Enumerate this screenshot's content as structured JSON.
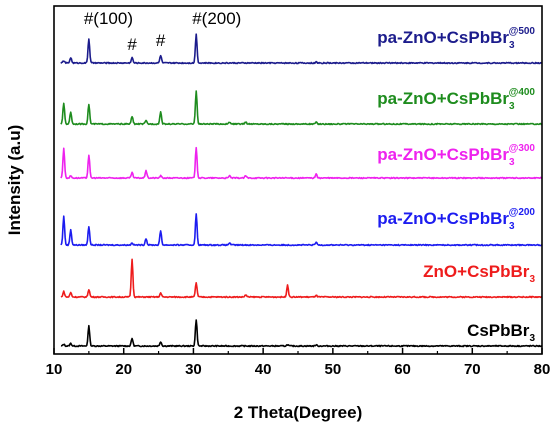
{
  "chart_data": {
    "type": "line",
    "xlabel": "2 Theta(Degree)",
    "ylabel": "Intensity (a.u)",
    "xlim": [
      10,
      80
    ],
    "x_ticks": [
      10,
      20,
      30,
      40,
      50,
      60,
      70,
      80
    ],
    "y_ticks_shown": false,
    "grid": false,
    "legend": "inline labels, right of each trace",
    "annotations": [
      "#(100)",
      "#",
      "#",
      "#(200)"
    ],
    "annotation_x": [
      15,
      21.2,
      25.3,
      30.4
    ],
    "series": [
      {
        "name": "CsPbBr3",
        "label": {
          "main": "CsPbBr",
          "sub": "3",
          "sup": ""
        },
        "color": "#000000",
        "offset": 0,
        "peaks": [
          [
            11.4,
            0.8
          ],
          [
            12.4,
            1.2
          ],
          [
            15.0,
            9.0
          ],
          [
            21.2,
            3.5
          ],
          [
            25.3,
            2.0
          ],
          [
            30.4,
            12.0
          ],
          [
            43.5,
            0.6
          ],
          [
            47.6,
            0.5
          ]
        ]
      },
      {
        "name": "ZnO+CsPbBr3",
        "label": {
          "main": "ZnO+CsPbBr",
          "sub": "3",
          "sup": ""
        },
        "color": "#ee1c1c",
        "offset": 1,
        "peaks": [
          [
            11.4,
            2.5
          ],
          [
            12.4,
            2.0
          ],
          [
            15.0,
            3.5
          ],
          [
            21.2,
            17.0
          ],
          [
            25.3,
            1.8
          ],
          [
            30.4,
            6.5
          ],
          [
            37.5,
            1.0
          ],
          [
            43.5,
            5.5
          ],
          [
            47.6,
            0.8
          ]
        ]
      },
      {
        "name": "pa-ZnO+CsPbBr3@200",
        "label": {
          "main": "pa-ZnO+CsPbBr",
          "sub": "3",
          "sup": "@200"
        },
        "color": "#1c1cf0",
        "offset": 2,
        "peaks": [
          [
            11.4,
            13.0
          ],
          [
            12.4,
            7.0
          ],
          [
            15.0,
            8.5
          ],
          [
            21.2,
            1.0
          ],
          [
            23.2,
            3.0
          ],
          [
            25.3,
            6.5
          ],
          [
            30.4,
            14.0
          ],
          [
            35.2,
            1.0
          ],
          [
            47.6,
            1.2
          ]
        ]
      },
      {
        "name": "pa-ZnO+CsPbBr3@300",
        "label": {
          "main": "pa-ZnO+CsPbBr",
          "sub": "3",
          "sup": "@300"
        },
        "color": "#ee22ee",
        "offset": 3,
        "peaks": [
          [
            11.4,
            13.5
          ],
          [
            12.4,
            1.0
          ],
          [
            15.0,
            10.5
          ],
          [
            21.2,
            2.5
          ],
          [
            23.2,
            3.5
          ],
          [
            25.3,
            1.0
          ],
          [
            30.4,
            14.0
          ],
          [
            35.2,
            1.0
          ],
          [
            37.5,
            1.0
          ],
          [
            47.6,
            1.8
          ]
        ]
      },
      {
        "name": "pa-ZnO+CsPbBr3@400",
        "label": {
          "main": "pa-ZnO+CsPbBr",
          "sub": "3",
          "sup": "@400"
        },
        "color": "#1e8c1e",
        "offset": 4,
        "peaks": [
          [
            11.4,
            9.5
          ],
          [
            12.4,
            5.5
          ],
          [
            15.0,
            9.0
          ],
          [
            21.2,
            3.5
          ],
          [
            23.2,
            1.5
          ],
          [
            25.3,
            5.5
          ],
          [
            30.4,
            15.0
          ],
          [
            35.2,
            0.8
          ],
          [
            37.5,
            1.0
          ],
          [
            47.6,
            0.8
          ]
        ]
      },
      {
        "name": "pa-ZnO+CsPbBr3@500",
        "label": {
          "main": "pa-ZnO+CsPbBr",
          "sub": "3",
          "sup": "@500"
        },
        "color": "#1c1c8c",
        "offset": 5,
        "peaks": [
          [
            11.4,
            1.0
          ],
          [
            12.4,
            2.5
          ],
          [
            15.0,
            11.0
          ],
          [
            21.2,
            2.5
          ],
          [
            25.3,
            3.5
          ],
          [
            30.4,
            13.0
          ],
          [
            47.6,
            0.4
          ]
        ]
      }
    ]
  }
}
